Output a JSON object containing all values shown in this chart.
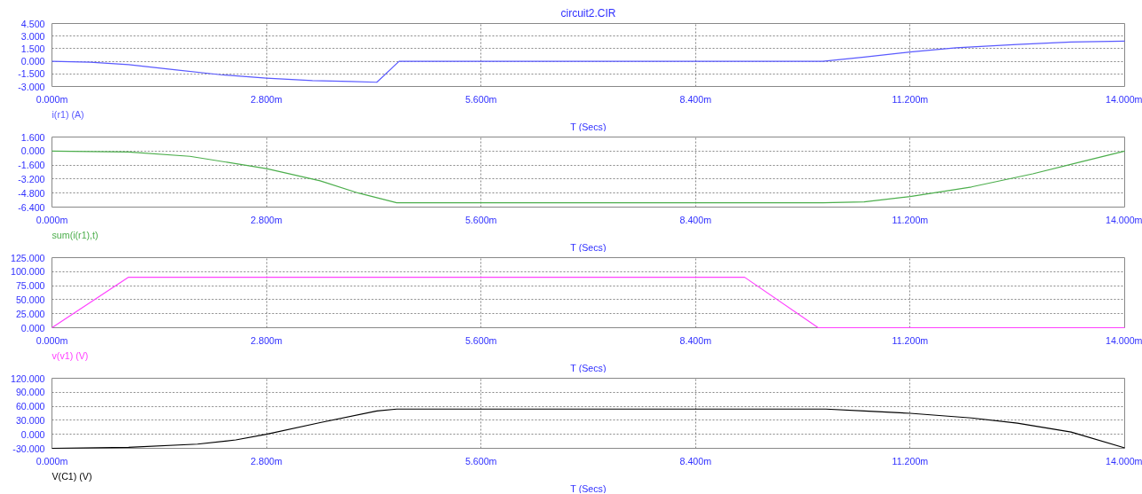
{
  "chart_data": [
    {
      "type": "line",
      "title": "circuit2.CIR",
      "xlabel": "T (Secs)",
      "grid": true,
      "legend": false,
      "line_style": "solid",
      "xlim": [
        0,
        14
      ],
      "xticks": [
        {
          "value": 0,
          "label": "0.000m"
        },
        {
          "value": 2.8,
          "label": "2.800m"
        },
        {
          "value": 5.6,
          "label": "5.600m"
        },
        {
          "value": 8.4,
          "label": "8.400m"
        },
        {
          "value": 11.2,
          "label": "11.200m"
        },
        {
          "value": 14,
          "label": "14.000m"
        }
      ],
      "ylim": [
        -3,
        4.5
      ],
      "yticks": [
        {
          "value": -3,
          "label": "-3.000"
        },
        {
          "value": -1.5,
          "label": "-1.500"
        },
        {
          "value": 0,
          "label": "0.000"
        },
        {
          "value": 1.5,
          "label": "1.500"
        },
        {
          "value": 3,
          "label": "3.000"
        },
        {
          "value": 4.5,
          "label": "4.500"
        }
      ],
      "series": [
        {
          "name": "i(r1) (A)",
          "color": "#5a5aff",
          "x": [
            0,
            0.5,
            1.0,
            1.6,
            2.2,
            2.8,
            3.4,
            3.9,
            4.24,
            4.53,
            10.06,
            10.6,
            11.2,
            11.8,
            12.6,
            13.3,
            14
          ],
          "values": [
            0,
            -0.1,
            -0.4,
            -1.0,
            -1.6,
            -2.0,
            -2.3,
            -2.4,
            -2.5,
            0,
            0,
            0.5,
            1.1,
            1.6,
            2.0,
            2.3,
            2.4
          ]
        }
      ]
    },
    {
      "type": "line",
      "xlabel": "T (Secs)",
      "grid": true,
      "legend": false,
      "line_style": "solid",
      "xlim": [
        0,
        14
      ],
      "xticks": [
        {
          "value": 0,
          "label": "0.000m"
        },
        {
          "value": 2.8,
          "label": "2.800m"
        },
        {
          "value": 5.6,
          "label": "5.600m"
        },
        {
          "value": 8.4,
          "label": "8.400m"
        },
        {
          "value": 11.2,
          "label": "11.200m"
        },
        {
          "value": 14,
          "label": "14.000m"
        }
      ],
      "ylim": [
        -6.4,
        1.6
      ],
      "yticks": [
        {
          "value": -6.4,
          "label": "-6.400"
        },
        {
          "value": -4.8,
          "label": "-4.800"
        },
        {
          "value": -3.2,
          "label": "-3.200"
        },
        {
          "value": -1.6,
          "label": "-1.600"
        },
        {
          "value": 0,
          "label": "0.000"
        },
        {
          "value": 1.6,
          "label": "1.600"
        }
      ],
      "series": [
        {
          "name": "sum(i(r1),t)",
          "color": "#4cae4c",
          "x": [
            0,
            1.0,
            1.8,
            2.8,
            3.5,
            4.0,
            4.5,
            10.06,
            10.6,
            11.2,
            12.0,
            12.8,
            13.4,
            14
          ],
          "values": [
            0,
            -0.1,
            -0.6,
            -2.0,
            -3.4,
            -4.8,
            -5.9,
            -5.9,
            -5.8,
            -5.2,
            -4.1,
            -2.6,
            -1.3,
            0
          ]
        }
      ]
    },
    {
      "type": "line",
      "xlabel": "T (Secs)",
      "grid": true,
      "legend": false,
      "line_style": "solid",
      "xlim": [
        0,
        14
      ],
      "xticks": [
        {
          "value": 0,
          "label": "0.000m"
        },
        {
          "value": 2.8,
          "label": "2.800m"
        },
        {
          "value": 5.6,
          "label": "5.600m"
        },
        {
          "value": 8.4,
          "label": "8.400m"
        },
        {
          "value": 11.2,
          "label": "11.200m"
        },
        {
          "value": 14,
          "label": "14.000m"
        }
      ],
      "ylim": [
        0,
        125
      ],
      "yticks": [
        {
          "value": 0,
          "label": "0.000"
        },
        {
          "value": 25,
          "label": "25.000"
        },
        {
          "value": 50,
          "label": "50.000"
        },
        {
          "value": 75,
          "label": "75.000"
        },
        {
          "value": 100,
          "label": "100.000"
        },
        {
          "value": 125,
          "label": "125.000"
        }
      ],
      "series": [
        {
          "name": "v(v1) (V)",
          "color": "#ff40ff",
          "x": [
            0,
            1.0,
            9.04,
            10.0,
            14
          ],
          "values": [
            0,
            90,
            90,
            0,
            0
          ]
        }
      ]
    },
    {
      "type": "line",
      "xlabel": "T (Secs)",
      "grid": true,
      "legend": false,
      "line_style": "solid",
      "xlim": [
        0,
        14
      ],
      "xticks": [
        {
          "value": 0,
          "label": "0.000m"
        },
        {
          "value": 2.8,
          "label": "2.800m"
        },
        {
          "value": 5.6,
          "label": "5.600m"
        },
        {
          "value": 8.4,
          "label": "8.400m"
        },
        {
          "value": 11.2,
          "label": "11.200m"
        },
        {
          "value": 14,
          "label": "14.000m"
        }
      ],
      "ylim": [
        -30,
        120
      ],
      "yticks": [
        {
          "value": -30,
          "label": "-30.000"
        },
        {
          "value": 0,
          "label": "0.000"
        },
        {
          "value": 30,
          "label": "30.000"
        },
        {
          "value": 60,
          "label": "60.000"
        },
        {
          "value": 90,
          "label": "90.000"
        },
        {
          "value": 120,
          "label": "120.000"
        }
      ],
      "series": [
        {
          "name": "V(C1) (V)",
          "color": "#000000",
          "x": [
            0,
            1.0,
            1.9,
            2.4,
            2.8,
            3.5,
            4.24,
            4.5,
            10.1,
            10.6,
            11.2,
            12.0,
            12.6,
            13.3,
            14
          ],
          "values": [
            -30,
            -28,
            -21,
            -12,
            0,
            25,
            50,
            54,
            54,
            50,
            45,
            35,
            24,
            5,
            -29
          ]
        }
      ]
    }
  ]
}
